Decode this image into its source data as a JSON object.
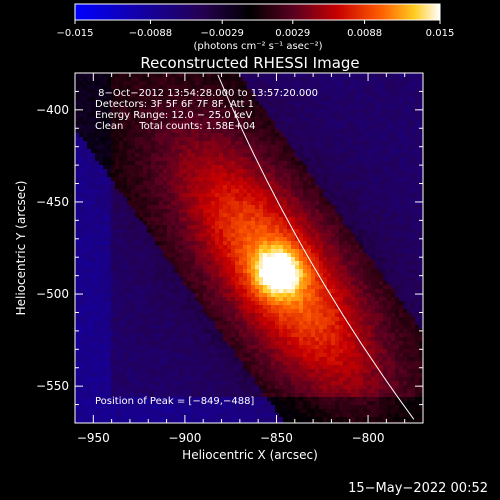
{
  "chart_data": {
    "type": "heatmap",
    "title": "Reconstructed RHESSI Image",
    "xlabel": "Heliocentric X (arcsec)",
    "ylabel": "Heliocentric Y (arcsec)",
    "xlim": [
      -960,
      -770
    ],
    "ylim": [
      -570,
      -380
    ],
    "x_ticks": [
      -950,
      -900,
      -850,
      -800
    ],
    "y_ticks": [
      -400,
      -450,
      -500,
      -550
    ],
    "x_tick_labels": [
      "−950",
      "−900",
      "−850",
      "−800"
    ],
    "y_tick_labels": [
      "−400",
      "−450",
      "−500",
      "−550"
    ],
    "colorbar": {
      "label": "(photons cm⁻² s⁻¹ asec⁻²)",
      "range": [
        -0.015,
        0.015
      ],
      "ticks": [
        -0.015,
        -0.0088,
        -0.0029,
        0.0029,
        0.0088,
        0.015
      ],
      "tick_labels": [
        "−0.015",
        "−0.0088",
        "−0.0029",
        "0.0029",
        "0.0088",
        "0.015"
      ]
    },
    "header_lines": [
      " 8−Oct−2012 13:54:28.000 to 13:57:20.000",
      "Detectors: 3F 5F 6F 7F 8F, Att 1",
      "Energy Range: 12.0 − 25.0 keV",
      "Clean     Total counts: 1.58E+04"
    ],
    "peak_label": "Position of Peak = [−849,−488]",
    "peak_position": [
      -849,
      -488
    ],
    "limb_curve": [
      [
        -882,
        -381
      ],
      [
        -840,
        -480
      ],
      [
        -775,
        -568
      ]
    ]
  },
  "footer": {
    "date": "15−May−2022 00:52"
  }
}
